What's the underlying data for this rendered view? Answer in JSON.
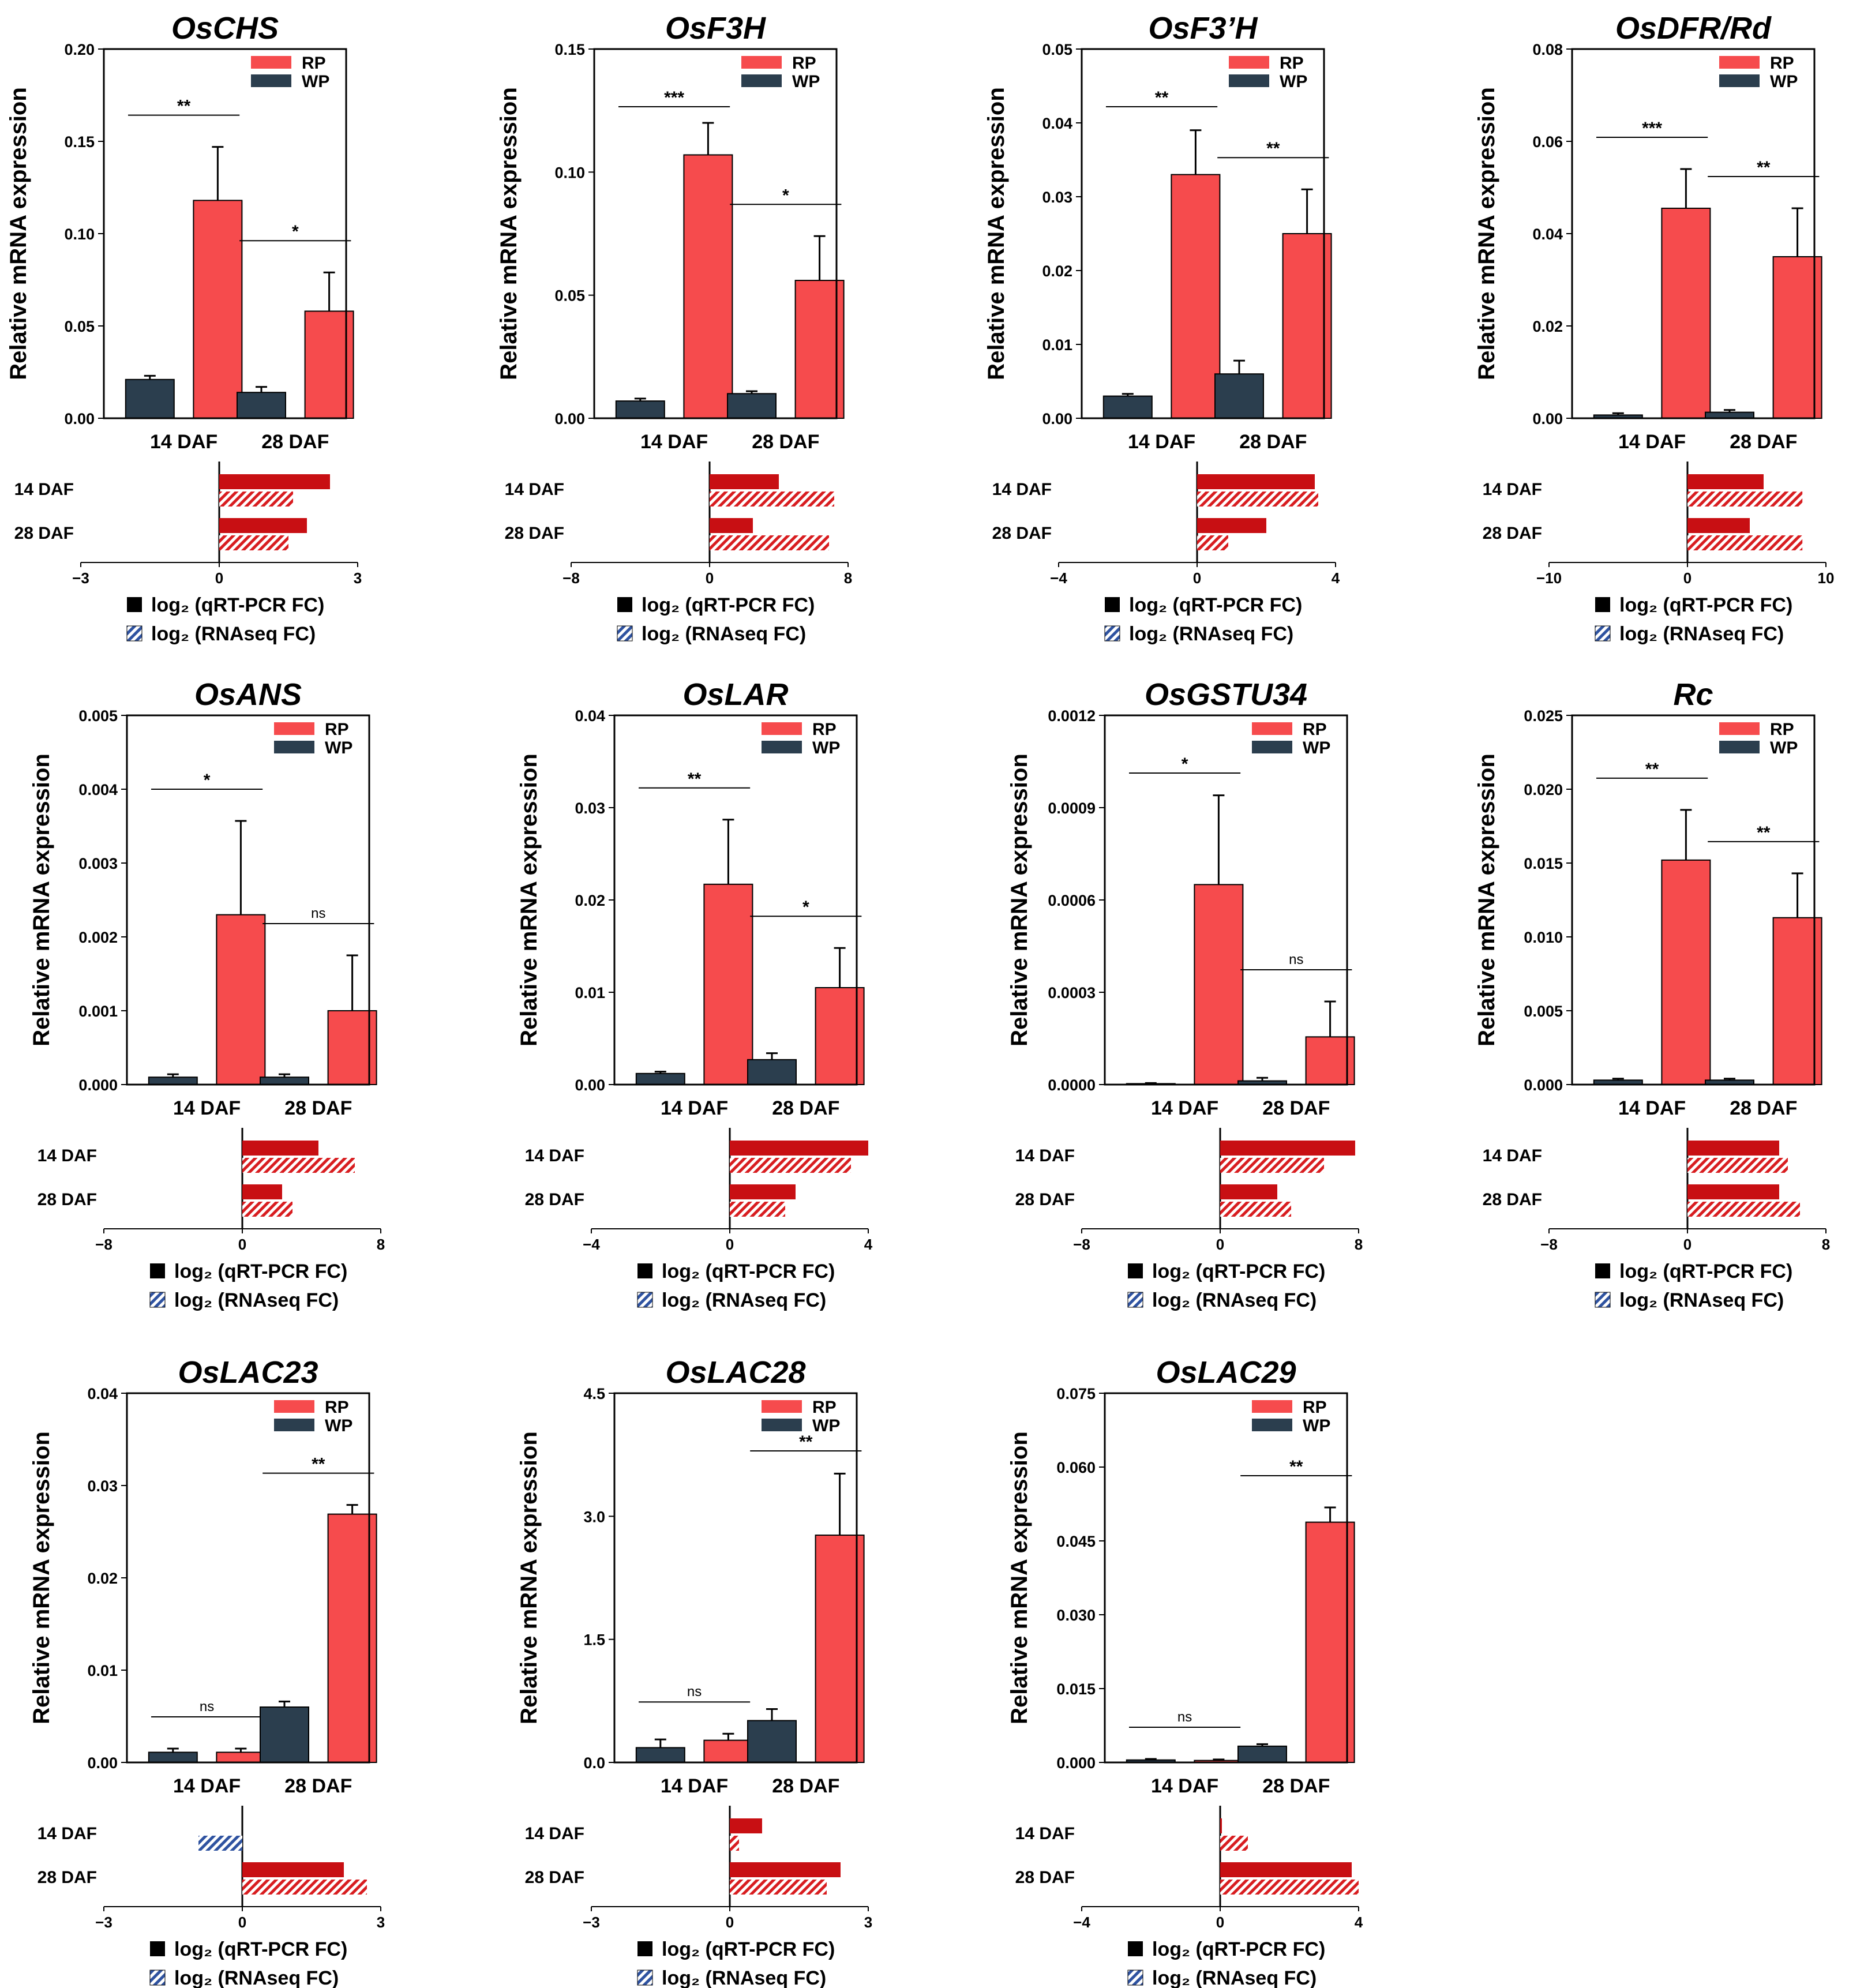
{
  "colors": {
    "rp": "#f64b4d",
    "wp": "#2b3e4e",
    "fc_red": "#c80f13",
    "fc_hatch": "#d81d20",
    "fc_blue": "#2e52a0"
  },
  "common": {
    "ylabel": "Relative mRNA expression",
    "categories": [
      "14 DAF",
      "28 DAF"
    ],
    "legend_rp": "RP",
    "legend_wp": "WP",
    "fc_rows": [
      "14 DAF",
      "28 DAF"
    ],
    "fc_legend_qrt": "log₂ (qRT-PCR FC)",
    "fc_legend_rna": "log₂ (RNAseq FC)"
  },
  "chart_data": [
    {
      "type": "bar",
      "title": "OsCHS",
      "ylabel": "Relative mRNA expression",
      "categories": [
        "14 DAF",
        "28 DAF"
      ],
      "ylim": [
        0,
        0.2
      ],
      "yticks": [
        "0.00",
        "0.05",
        "0.10",
        "0.15",
        "0.20"
      ],
      "series": [
        {
          "name": "WP",
          "values": [
            0.021,
            0.014
          ],
          "errors": [
            0.002,
            0.003
          ]
        },
        {
          "name": "RP",
          "values": [
            0.118,
            0.058
          ],
          "errors": [
            0.029,
            0.021
          ]
        }
      ],
      "sig": [
        "**",
        "*"
      ],
      "fold_change": {
        "xlim": [
          -3,
          3
        ],
        "xticks": [
          "−3",
          "0",
          "3"
        ],
        "qrt_pcr": [
          2.4,
          1.9
        ],
        "rnaseq": [
          1.6,
          1.5
        ]
      }
    },
    {
      "type": "bar",
      "title": "OsF3H",
      "ylabel": "Relative mRNA expression",
      "categories": [
        "14 DAF",
        "28 DAF"
      ],
      "ylim": [
        0,
        0.15
      ],
      "yticks": [
        "0.00",
        "0.05",
        "0.10",
        "0.15"
      ],
      "series": [
        {
          "name": "WP",
          "values": [
            0.007,
            0.01
          ],
          "errors": [
            0.001,
            0.001
          ]
        },
        {
          "name": "RP",
          "values": [
            0.107,
            0.056
          ],
          "errors": [
            0.013,
            0.018
          ]
        }
      ],
      "sig": [
        "***",
        "*"
      ],
      "fold_change": {
        "xlim": [
          -8,
          8
        ],
        "xticks": [
          "−8",
          "0",
          "8"
        ],
        "qrt_pcr": [
          4.0,
          2.5
        ],
        "rnaseq": [
          7.2,
          6.9
        ]
      }
    },
    {
      "type": "bar",
      "title": "OsF3’H",
      "ylabel": "Relative mRNA expression",
      "categories": [
        "14 DAF",
        "28 DAF"
      ],
      "ylim": [
        0,
        0.05
      ],
      "yticks": [
        "0.00",
        "0.01",
        "0.02",
        "0.03",
        "0.04",
        "0.05"
      ],
      "series": [
        {
          "name": "WP",
          "values": [
            0.003,
            0.006
          ],
          "errors": [
            0.0003,
            0.0018
          ]
        },
        {
          "name": "RP",
          "values": [
            0.033,
            0.025
          ],
          "errors": [
            0.006,
            0.006
          ]
        }
      ],
      "sig": [
        "**",
        "**"
      ],
      "fold_change": {
        "xlim": [
          -4,
          4
        ],
        "xticks": [
          "−4",
          "0",
          "4"
        ],
        "qrt_pcr": [
          3.4,
          2.0
        ],
        "rnaseq": [
          3.5,
          0.9
        ]
      }
    },
    {
      "type": "bar",
      "title": "OsDFR/Rd",
      "ylabel": "Relative mRNA expression",
      "categories": [
        "14 DAF",
        "28 DAF"
      ],
      "ylim": [
        0,
        0.08
      ],
      "yticks": [
        "0.00",
        "0.02",
        "0.04",
        "0.06",
        "0.08"
      ],
      "series": [
        {
          "name": "WP",
          "values": [
            0.0007,
            0.0013
          ],
          "errors": [
            0.0004,
            0.0005
          ]
        },
        {
          "name": "RP",
          "values": [
            0.0455,
            0.035
          ],
          "errors": [
            0.0085,
            0.0105
          ]
        }
      ],
      "sig": [
        "***",
        "**"
      ],
      "fold_change": {
        "xlim": [
          -10,
          10
        ],
        "xticks": [
          "−10",
          "0",
          "10"
        ],
        "qrt_pcr": [
          5.5,
          4.5
        ],
        "rnaseq": [
          8.3,
          8.3
        ]
      }
    },
    {
      "type": "bar",
      "title": "OsANS",
      "ylabel": "Relative mRNA expression",
      "categories": [
        "14 DAF",
        "28 DAF"
      ],
      "ylim": [
        0,
        0.005
      ],
      "yticks": [
        "0.000",
        "0.001",
        "0.002",
        "0.003",
        "0.004",
        "0.005"
      ],
      "series": [
        {
          "name": "WP",
          "values": [
            0.0001,
            0.0001
          ],
          "errors": [
            4e-05,
            4e-05
          ]
        },
        {
          "name": "RP",
          "values": [
            0.0023,
            0.001
          ],
          "errors": [
            0.00127,
            0.00075
          ]
        }
      ],
      "sig": [
        "*",
        "ns"
      ],
      "fold_change": {
        "xlim": [
          -8,
          8
        ],
        "xticks": [
          "−8",
          "0",
          "8"
        ],
        "qrt_pcr": [
          4.4,
          2.3
        ],
        "rnaseq": [
          6.5,
          2.9
        ]
      }
    },
    {
      "type": "bar",
      "title": "OsLAR",
      "ylabel": "Relative mRNA expression",
      "categories": [
        "14 DAF",
        "28 DAF"
      ],
      "ylim": [
        0,
        0.04
      ],
      "yticks": [
        "0.00",
        "0.01",
        "0.02",
        "0.03",
        "0.04"
      ],
      "series": [
        {
          "name": "WP",
          "values": [
            0.0012,
            0.0027
          ],
          "errors": [
            0.0002,
            0.0007
          ]
        },
        {
          "name": "RP",
          "values": [
            0.0217,
            0.0105
          ],
          "errors": [
            0.007,
            0.0043
          ]
        }
      ],
      "sig": [
        "**",
        "*"
      ],
      "fold_change": {
        "xlim": [
          -4,
          4
        ],
        "xticks": [
          "−4",
          "0",
          "4"
        ],
        "qrt_pcr": [
          4.0,
          1.9
        ],
        "rnaseq": [
          3.5,
          1.6
        ]
      }
    },
    {
      "type": "bar",
      "title": "OsGSTU34",
      "ylabel": "Relative mRNA expression",
      "categories": [
        "14 DAF",
        "28 DAF"
      ],
      "ylim": [
        0,
        0.0012
      ],
      "yticks": [
        "0.0000",
        "0.0003",
        "0.0006",
        "0.0009",
        "0.0012"
      ],
      "series": [
        {
          "name": "WP",
          "values": [
            3e-06,
            1.2e-05
          ],
          "errors": [
            2e-06,
            1e-05
          ]
        },
        {
          "name": "RP",
          "values": [
            0.00065,
            0.000155
          ],
          "errors": [
            0.00029,
            0.000115
          ]
        }
      ],
      "sig": [
        "*",
        "ns"
      ],
      "fold_change": {
        "xlim": [
          -8,
          8
        ],
        "xticks": [
          "−8",
          "0",
          "8"
        ],
        "qrt_pcr": [
          7.8,
          3.3
        ],
        "rnaseq": [
          6.0,
          4.1
        ]
      }
    },
    {
      "type": "bar",
      "title": "Rc",
      "ylabel": "Relative mRNA expression",
      "categories": [
        "14 DAF",
        "28 DAF"
      ],
      "ylim": [
        0,
        0.025
      ],
      "yticks": [
        "0.000",
        "0.005",
        "0.010",
        "0.015",
        "0.020",
        "0.025"
      ],
      "series": [
        {
          "name": "WP",
          "values": [
            0.0003,
            0.0003
          ],
          "errors": [
            0.0001,
            0.0001
          ]
        },
        {
          "name": "RP",
          "values": [
            0.0152,
            0.0113
          ],
          "errors": [
            0.0034,
            0.003
          ]
        }
      ],
      "sig": [
        "**",
        "**"
      ],
      "fold_change": {
        "xlim": [
          -8,
          8
        ],
        "xticks": [
          "−8",
          "0",
          "8"
        ],
        "qrt_pcr": [
          5.3,
          5.3
        ],
        "rnaseq": [
          5.8,
          6.5
        ]
      }
    },
    {
      "type": "bar",
      "title": "OsLAC23",
      "ylabel": "Relative mRNA expression",
      "categories": [
        "14 DAF",
        "28 DAF"
      ],
      "ylim": [
        0,
        0.04
      ],
      "yticks": [
        "0.00",
        "0.01",
        "0.02",
        "0.03",
        "0.04"
      ],
      "series": [
        {
          "name": "WP",
          "values": [
            0.0011,
            0.006
          ],
          "errors": [
            0.0004,
            0.0006
          ]
        },
        {
          "name": "RP",
          "values": [
            0.0011,
            0.0269
          ],
          "errors": [
            0.0004,
            0.001
          ]
        }
      ],
      "sig": [
        "ns",
        "**"
      ],
      "fold_change": {
        "xlim": [
          -3,
          3
        ],
        "xticks": [
          "−3",
          "0",
          "3"
        ],
        "qrt_pcr": [
          0.0,
          2.2
        ],
        "rnaseq": [
          -0.95,
          2.7
        ]
      }
    },
    {
      "type": "bar",
      "title": "OsLAC28",
      "ylabel": "Relative mRNA expression",
      "categories": [
        "14 DAF",
        "28 DAF"
      ],
      "ylim": [
        0,
        4.5
      ],
      "yticks": [
        "0.0",
        "1.5",
        "3.0",
        "4.5"
      ],
      "series": [
        {
          "name": "WP",
          "values": [
            0.18,
            0.51
          ],
          "errors": [
            0.1,
            0.14
          ]
        },
        {
          "name": "RP",
          "values": [
            0.27,
            2.77
          ],
          "errors": [
            0.08,
            0.75
          ]
        }
      ],
      "sig": [
        "ns",
        "**"
      ],
      "fold_change": {
        "xlim": [
          -3,
          3
        ],
        "xticks": [
          "−3",
          "0",
          "3"
        ],
        "qrt_pcr": [
          0.7,
          2.4
        ],
        "rnaseq": [
          0.2,
          2.1
        ]
      }
    },
    {
      "type": "bar",
      "title": "OsLAC29",
      "ylabel": "Relative mRNA expression",
      "categories": [
        "14 DAF",
        "28 DAF"
      ],
      "ylim": [
        0,
        0.075
      ],
      "yticks": [
        "0.000",
        "0.015",
        "0.030",
        "0.045",
        "0.060",
        "0.075"
      ],
      "series": [
        {
          "name": "WP",
          "values": [
            0.0005,
            0.0033
          ],
          "errors": [
            0.0002,
            0.0004
          ]
        },
        {
          "name": "RP",
          "values": [
            0.0004,
            0.0488
          ],
          "errors": [
            0.0002,
            0.003
          ]
        }
      ],
      "sig": [
        "ns",
        "**"
      ],
      "fold_change": {
        "xlim": [
          -4,
          4
        ],
        "xticks": [
          "−4",
          "0",
          "4"
        ],
        "qrt_pcr": [
          0.05,
          3.8
        ],
        "rnaseq": [
          0.8,
          4.0
        ]
      }
    }
  ]
}
